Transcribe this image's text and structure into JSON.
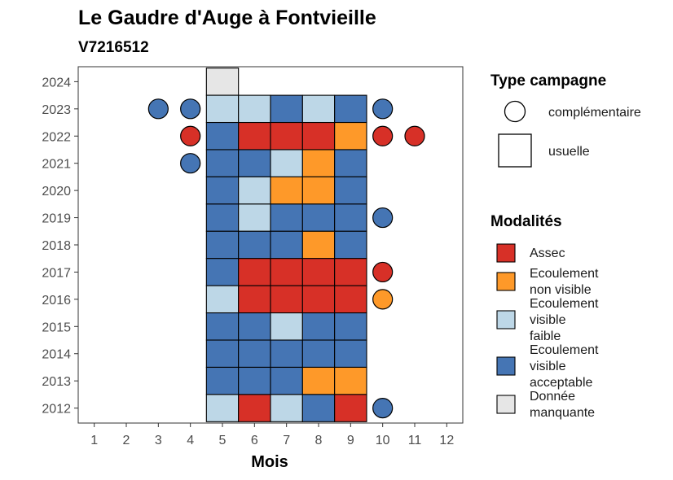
{
  "chart_data": {
    "type": "heatmap",
    "title": "Le Gaudre d'Auge à Fontvieille",
    "subtitle": "V7216512",
    "xlabel": "Mois",
    "ylabel": "",
    "x_ticks": [
      1,
      2,
      3,
      4,
      5,
      6,
      7,
      8,
      9,
      10,
      11,
      12
    ],
    "y_ticks": [
      2012,
      2013,
      2014,
      2015,
      2016,
      2017,
      2018,
      2019,
      2020,
      2021,
      2022,
      2023,
      2024
    ],
    "xlim": [
      0.5,
      12.5
    ],
    "ylim": [
      2011.45,
      2024.55
    ],
    "grid": false,
    "legend_placement": "right",
    "modalities": [
      {
        "key": "assec",
        "label": "Assec",
        "color": "#d73027"
      },
      {
        "key": "nonvisible",
        "label": "Ecoulement non visible",
        "color": "#fe9929"
      },
      {
        "key": "faible",
        "label": "Ecoulement visible faible",
        "color": "#bdd7e7"
      },
      {
        "key": "acceptable",
        "label": "Ecoulement visible acceptable",
        "color": "#4575b4"
      },
      {
        "key": "manquante",
        "label": "Donnée manquante",
        "color": "#e6e6e6"
      }
    ],
    "campaign_types": [
      {
        "key": "complementaire",
        "label": "complémentaire",
        "shape": "circle"
      },
      {
        "key": "usuelle",
        "label": "usuelle",
        "shape": "square"
      }
    ],
    "observations": [
      {
        "year": 2024,
        "month": 5,
        "campaign": "usuelle",
        "modality": "manquante"
      },
      {
        "year": 2023,
        "month": 3,
        "campaign": "complementaire",
        "modality": "acceptable"
      },
      {
        "year": 2023,
        "month": 4,
        "campaign": "complementaire",
        "modality": "acceptable"
      },
      {
        "year": 2023,
        "month": 5,
        "campaign": "usuelle",
        "modality": "faible"
      },
      {
        "year": 2023,
        "month": 6,
        "campaign": "usuelle",
        "modality": "faible"
      },
      {
        "year": 2023,
        "month": 7,
        "campaign": "usuelle",
        "modality": "acceptable"
      },
      {
        "year": 2023,
        "month": 8,
        "campaign": "usuelle",
        "modality": "faible"
      },
      {
        "year": 2023,
        "month": 9,
        "campaign": "usuelle",
        "modality": "acceptable"
      },
      {
        "year": 2023,
        "month": 10,
        "campaign": "complementaire",
        "modality": "acceptable"
      },
      {
        "year": 2022,
        "month": 4,
        "campaign": "complementaire",
        "modality": "assec"
      },
      {
        "year": 2022,
        "month": 5,
        "campaign": "usuelle",
        "modality": "acceptable"
      },
      {
        "year": 2022,
        "month": 6,
        "campaign": "usuelle",
        "modality": "assec"
      },
      {
        "year": 2022,
        "month": 7,
        "campaign": "usuelle",
        "modality": "assec"
      },
      {
        "year": 2022,
        "month": 8,
        "campaign": "usuelle",
        "modality": "assec"
      },
      {
        "year": 2022,
        "month": 9,
        "campaign": "usuelle",
        "modality": "nonvisible"
      },
      {
        "year": 2022,
        "month": 10,
        "campaign": "complementaire",
        "modality": "assec"
      },
      {
        "year": 2022,
        "month": 11,
        "campaign": "complementaire",
        "modality": "assec"
      },
      {
        "year": 2021,
        "month": 4,
        "campaign": "complementaire",
        "modality": "acceptable"
      },
      {
        "year": 2021,
        "month": 5,
        "campaign": "usuelle",
        "modality": "acceptable"
      },
      {
        "year": 2021,
        "month": 6,
        "campaign": "usuelle",
        "modality": "acceptable"
      },
      {
        "year": 2021,
        "month": 7,
        "campaign": "usuelle",
        "modality": "faible"
      },
      {
        "year": 2021,
        "month": 8,
        "campaign": "usuelle",
        "modality": "nonvisible"
      },
      {
        "year": 2021,
        "month": 9,
        "campaign": "usuelle",
        "modality": "acceptable"
      },
      {
        "year": 2020,
        "month": 5,
        "campaign": "usuelle",
        "modality": "acceptable"
      },
      {
        "year": 2020,
        "month": 6,
        "campaign": "usuelle",
        "modality": "faible"
      },
      {
        "year": 2020,
        "month": 7,
        "campaign": "usuelle",
        "modality": "nonvisible"
      },
      {
        "year": 2020,
        "month": 8,
        "campaign": "usuelle",
        "modality": "nonvisible"
      },
      {
        "year": 2020,
        "month": 9,
        "campaign": "usuelle",
        "modality": "acceptable"
      },
      {
        "year": 2019,
        "month": 5,
        "campaign": "usuelle",
        "modality": "acceptable"
      },
      {
        "year": 2019,
        "month": 6,
        "campaign": "usuelle",
        "modality": "faible"
      },
      {
        "year": 2019,
        "month": 7,
        "campaign": "usuelle",
        "modality": "acceptable"
      },
      {
        "year": 2019,
        "month": 8,
        "campaign": "usuelle",
        "modality": "acceptable"
      },
      {
        "year": 2019,
        "month": 9,
        "campaign": "usuelle",
        "modality": "acceptable"
      },
      {
        "year": 2019,
        "month": 10,
        "campaign": "complementaire",
        "modality": "acceptable"
      },
      {
        "year": 2018,
        "month": 5,
        "campaign": "usuelle",
        "modality": "acceptable"
      },
      {
        "year": 2018,
        "month": 6,
        "campaign": "usuelle",
        "modality": "acceptable"
      },
      {
        "year": 2018,
        "month": 7,
        "campaign": "usuelle",
        "modality": "acceptable"
      },
      {
        "year": 2018,
        "month": 8,
        "campaign": "usuelle",
        "modality": "nonvisible"
      },
      {
        "year": 2018,
        "month": 9,
        "campaign": "usuelle",
        "modality": "acceptable"
      },
      {
        "year": 2017,
        "month": 5,
        "campaign": "usuelle",
        "modality": "acceptable"
      },
      {
        "year": 2017,
        "month": 6,
        "campaign": "usuelle",
        "modality": "assec"
      },
      {
        "year": 2017,
        "month": 7,
        "campaign": "usuelle",
        "modality": "assec"
      },
      {
        "year": 2017,
        "month": 8,
        "campaign": "usuelle",
        "modality": "assec"
      },
      {
        "year": 2017,
        "month": 9,
        "campaign": "usuelle",
        "modality": "assec"
      },
      {
        "year": 2017,
        "month": 10,
        "campaign": "complementaire",
        "modality": "assec"
      },
      {
        "year": 2016,
        "month": 5,
        "campaign": "usuelle",
        "modality": "faible"
      },
      {
        "year": 2016,
        "month": 6,
        "campaign": "usuelle",
        "modality": "assec"
      },
      {
        "year": 2016,
        "month": 7,
        "campaign": "usuelle",
        "modality": "assec"
      },
      {
        "year": 2016,
        "month": 8,
        "campaign": "usuelle",
        "modality": "assec"
      },
      {
        "year": 2016,
        "month": 9,
        "campaign": "usuelle",
        "modality": "assec"
      },
      {
        "year": 2016,
        "month": 10,
        "campaign": "complementaire",
        "modality": "nonvisible"
      },
      {
        "year": 2015,
        "month": 5,
        "campaign": "usuelle",
        "modality": "acceptable"
      },
      {
        "year": 2015,
        "month": 6,
        "campaign": "usuelle",
        "modality": "acceptable"
      },
      {
        "year": 2015,
        "month": 7,
        "campaign": "usuelle",
        "modality": "faible"
      },
      {
        "year": 2015,
        "month": 8,
        "campaign": "usuelle",
        "modality": "acceptable"
      },
      {
        "year": 2015,
        "month": 9,
        "campaign": "usuelle",
        "modality": "acceptable"
      },
      {
        "year": 2014,
        "month": 5,
        "campaign": "usuelle",
        "modality": "acceptable"
      },
      {
        "year": 2014,
        "month": 6,
        "campaign": "usuelle",
        "modality": "acceptable"
      },
      {
        "year": 2014,
        "month": 7,
        "campaign": "usuelle",
        "modality": "acceptable"
      },
      {
        "year": 2014,
        "month": 8,
        "campaign": "usuelle",
        "modality": "acceptable"
      },
      {
        "year": 2014,
        "month": 9,
        "campaign": "usuelle",
        "modality": "acceptable"
      },
      {
        "year": 2013,
        "month": 5,
        "campaign": "usuelle",
        "modality": "acceptable"
      },
      {
        "year": 2013,
        "month": 6,
        "campaign": "usuelle",
        "modality": "acceptable"
      },
      {
        "year": 2013,
        "month": 7,
        "campaign": "usuelle",
        "modality": "acceptable"
      },
      {
        "year": 2013,
        "month": 8,
        "campaign": "usuelle",
        "modality": "nonvisible"
      },
      {
        "year": 2013,
        "month": 9,
        "campaign": "usuelle",
        "modality": "nonvisible"
      },
      {
        "year": 2012,
        "month": 5,
        "campaign": "usuelle",
        "modality": "faible"
      },
      {
        "year": 2012,
        "month": 6,
        "campaign": "usuelle",
        "modality": "assec"
      },
      {
        "year": 2012,
        "month": 7,
        "campaign": "usuelle",
        "modality": "faible"
      },
      {
        "year": 2012,
        "month": 8,
        "campaign": "usuelle",
        "modality": "acceptable"
      },
      {
        "year": 2012,
        "month": 9,
        "campaign": "usuelle",
        "modality": "assec"
      },
      {
        "year": 2012,
        "month": 10,
        "campaign": "complementaire",
        "modality": "acceptable"
      }
    ]
  },
  "legend": {
    "campaign_title": "Type campagne",
    "modality_title": "Modalités",
    "campaign_labels": [
      "complémentaire",
      "usuelle"
    ],
    "modality_lines": [
      [
        "Assec"
      ],
      [
        "Ecoulement",
        "non visible"
      ],
      [
        "Ecoulement",
        "visible",
        "faible"
      ],
      [
        "Ecoulement",
        "visible",
        "acceptable"
      ],
      [
        "Donnée",
        "manquante"
      ]
    ]
  }
}
